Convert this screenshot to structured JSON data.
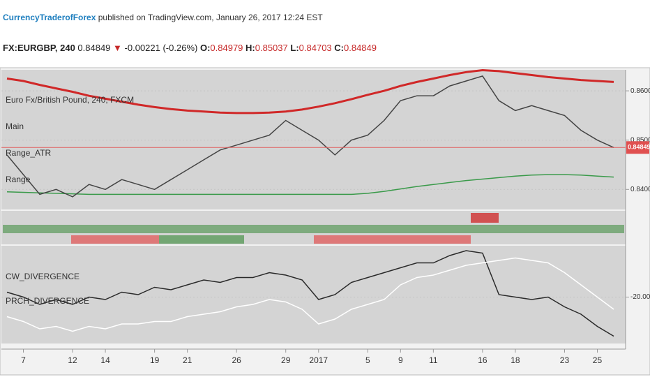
{
  "header": {
    "author": "CurrencyTraderofForex",
    "published": "published on TradingView.com, January 26, 2017 12:24 EST",
    "symbol": "FX:EURGBP, 240",
    "last": "0.84849",
    "arrow": "▼",
    "change": "-0.00221 (-0.26%)",
    "o_label": "O:",
    "open": "0.84979",
    "h_label": "H:",
    "high": "0.85037",
    "l_label": "L:",
    "low": "0.84703",
    "c_label": "C:",
    "close": "0.84849"
  },
  "chart_data": [
    {
      "type": "line",
      "labels": [
        "Euro Fx/British Pound, 240, FXCM",
        "Main",
        "Range_ATR",
        "Range"
      ],
      "categories": [
        null,
        "7",
        null,
        null,
        "12",
        null,
        "14",
        null,
        null,
        "19",
        null,
        "21",
        null,
        null,
        "26",
        null,
        null,
        "29",
        null,
        "2017",
        null,
        null,
        "5",
        null,
        "9",
        null,
        "11",
        null,
        null,
        "16",
        null,
        "18",
        null,
        null,
        "23",
        null,
        "25",
        null
      ],
      "series": [
        {
          "color": "#d02828",
          "width": 3,
          "values": [
            0.8625,
            0.862,
            0.8612,
            0.8605,
            0.8598,
            0.859,
            0.8584,
            0.8578,
            0.8572,
            0.8567,
            0.8563,
            0.856,
            0.8558,
            0.8556,
            0.8555,
            0.8555,
            0.8556,
            0.8558,
            0.8562,
            0.8568,
            0.8575,
            0.8583,
            0.8592,
            0.86,
            0.861,
            0.8618,
            0.8625,
            0.8632,
            0.8638,
            0.8642,
            0.864,
            0.8636,
            0.8632,
            0.8628,
            0.8625,
            0.8622,
            0.862,
            0.8618
          ]
        },
        {
          "color": "#3a9a4a",
          "width": 1.5,
          "values": [
            0.8395,
            0.8394,
            0.8393,
            0.8392,
            0.8391,
            0.839,
            0.839,
            0.839,
            0.839,
            0.839,
            0.839,
            0.839,
            0.839,
            0.839,
            0.839,
            0.839,
            0.839,
            0.839,
            0.839,
            0.839,
            0.839,
            0.839,
            0.8392,
            0.8396,
            0.8401,
            0.8406,
            0.841,
            0.8414,
            0.8418,
            0.8421,
            0.8424,
            0.8427,
            0.8429,
            0.843,
            0.843,
            0.8429,
            0.8427,
            0.8425
          ]
        },
        {
          "color": "#444444",
          "width": 1.5,
          "values": [
            0.847,
            0.843,
            0.839,
            0.84,
            0.8385,
            0.841,
            0.84,
            0.842,
            0.841,
            0.84,
            0.842,
            0.844,
            0.846,
            0.848,
            0.849,
            0.85,
            0.851,
            0.854,
            0.852,
            0.85,
            0.847,
            0.85,
            0.851,
            0.854,
            0.858,
            0.859,
            0.859,
            0.861,
            0.862,
            0.863,
            0.858,
            0.856,
            0.857,
            0.856,
            0.855,
            0.852,
            0.85,
            0.8485
          ]
        }
      ],
      "ylim": [
        0.8365,
        0.8637
      ],
      "yticks": [
        {
          "value": 0.84,
          "label": "0.84000"
        },
        {
          "value": 0.85,
          "label": "0.85000"
        },
        {
          "value": 0.86,
          "label": "0.86000"
        }
      ]
    },
    {
      "type": "line",
      "series": [
        {
          "name": "CW_DIVERGENCE",
          "color": "#2a2a2a",
          "values": [
            -18,
            -20,
            -23,
            -21,
            -23,
            -20,
            -21,
            -18,
            -19,
            -16,
            -17,
            -15,
            -13,
            -14,
            -12,
            -12,
            -10,
            -11,
            -13,
            -21,
            -19,
            -14,
            -12,
            -10,
            -8,
            -6,
            -6,
            -3,
            -1,
            -2,
            -19,
            -20,
            -21,
            -20,
            -24,
            -27,
            -32,
            -36
          ]
        },
        {
          "name": "PRCH_DIVERGENCE",
          "color": "#ffffff",
          "values": [
            -28,
            -30,
            -33,
            -32,
            -34,
            -32,
            -33,
            -31,
            -31,
            -30,
            -30,
            -28,
            -27,
            -26,
            -24,
            -23,
            -21,
            -22,
            -25,
            -31,
            -29,
            -25,
            -23,
            -21,
            -15,
            -12,
            -11,
            -9,
            -7,
            -6,
            -5,
            -4,
            -5,
            -6,
            -10,
            -15,
            -20,
            -25
          ]
        }
      ],
      "ylim": [
        -39,
        1
      ],
      "yticks": [
        {
          "value": -20,
          "label": "-20.0000"
        }
      ]
    }
  ]
}
